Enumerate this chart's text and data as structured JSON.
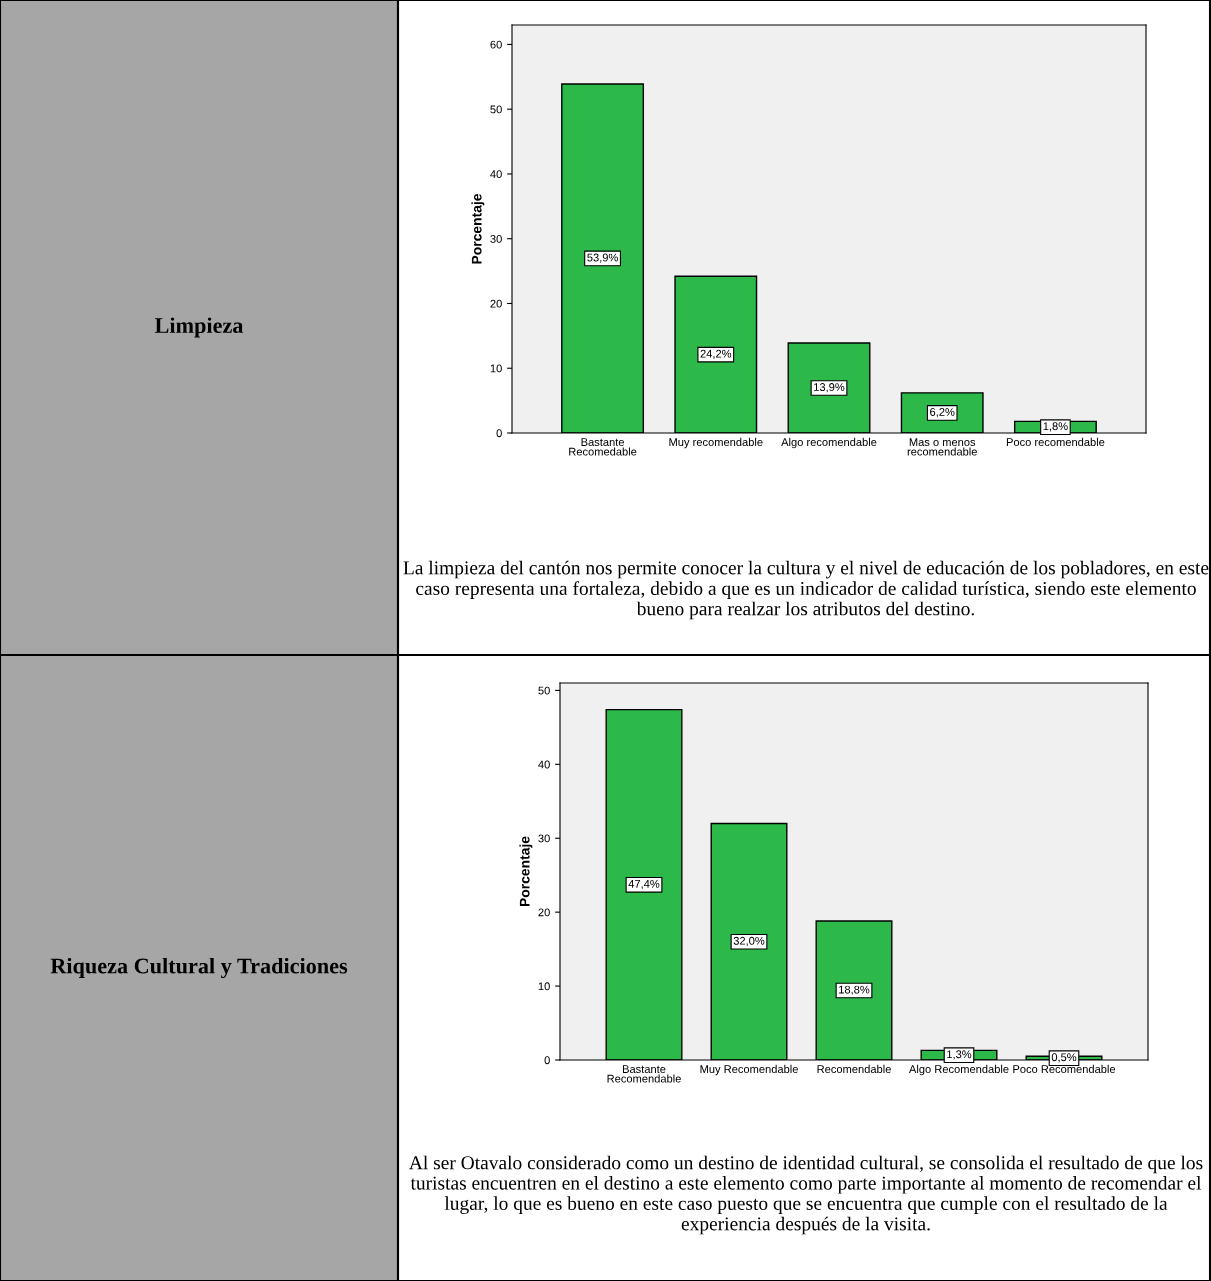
{
  "chart_data": [
    {
      "type": "bar",
      "ylabel": "Porcentaje",
      "categories": [
        "Bastante\nRecomedable",
        "Muy recomendable",
        "Algo recomendable",
        "Mas o menos\nrecomendable",
        "Poco recomendable"
      ],
      "values": [
        53.9,
        24.2,
        13.9,
        6.2,
        1.8
      ],
      "color": "#2db84a",
      "value_labels": [
        "53,9%",
        "24,2%",
        "13,9%",
        "6,2%",
        "1,8%"
      ],
      "ylim": [
        0,
        63
      ],
      "yticks": [
        0,
        10,
        20,
        30,
        40,
        50,
        60
      ],
      "grid": false,
      "legend": false,
      "annotations": [
        "Limpieza",
        "La limpieza del cantón nos permite conocer la cultura y el nivel de educación de los pobladores, en este caso representa una fortaleza, debido a que es un indicador de calidad turística, siendo este elemento bueno para realzar los atributos del destino."
      ]
    },
    {
      "type": "bar",
      "ylabel": "Porcentaje",
      "categories": [
        "Bastante\nRecomendable",
        "Muy Recomendable",
        "Recomendable",
        "Algo Recomendable",
        "Poco Recomendable"
      ],
      "values": [
        47.4,
        32.0,
        18.8,
        1.3,
        0.5
      ],
      "color": "#2db84a",
      "value_labels": [
        "47,4%",
        "32,0%",
        "18,8%",
        "1,3%",
        "0,5%"
      ],
      "ylim": [
        0,
        51
      ],
      "yticks": [
        0,
        10,
        20,
        30,
        40,
        50
      ],
      "grid": false,
      "legend": false,
      "annotations": [
        "Riqueza Cultural y Tradiciones",
        "Al ser Otavalo considerado como un destino de identidad cultural, se consolida el resultado de que los turistas encuentren en el destino a este elemento como parte importante al momento de recomendar el lugar, lo que es bueno en este caso puesto que se encuentra que cumple con el resultado de la experiencia después de la visita."
      ]
    }
  ]
}
